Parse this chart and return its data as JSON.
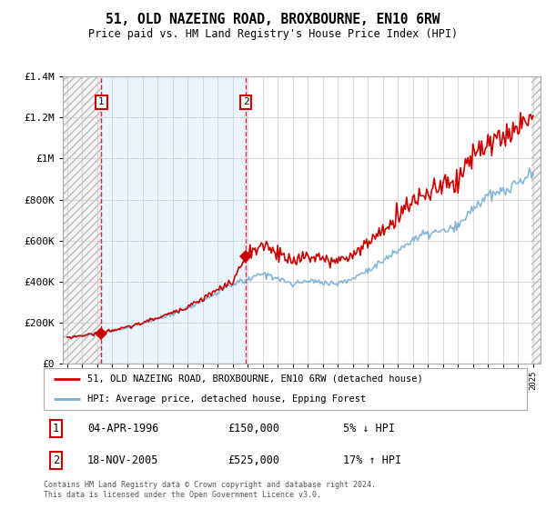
{
  "title": "51, OLD NAZEING ROAD, BROXBOURNE, EN10 6RW",
  "subtitle": "Price paid vs. HM Land Registry's House Price Index (HPI)",
  "legend_line1": "51, OLD NAZEING ROAD, BROXBOURNE, EN10 6RW (detached house)",
  "legend_line2": "HPI: Average price, detached house, Epping Forest",
  "footnote": "Contains HM Land Registry data © Crown copyright and database right 2024.\nThis data is licensed under the Open Government Licence v3.0.",
  "transaction1_label": "1",
  "transaction1_date": "04-APR-1996",
  "transaction1_price": 150000,
  "transaction1_note": "5% ↓ HPI",
  "transaction2_label": "2",
  "transaction2_date": "18-NOV-2005",
  "transaction2_price": 525000,
  "transaction2_note": "17% ↑ HPI",
  "price_color": "#cc0000",
  "hpi_color": "#7ab0d4",
  "hpi_fill_color": "#ddeeff",
  "ylim": [
    0,
    1400000
  ],
  "yticks": [
    0,
    200000,
    400000,
    600000,
    800000,
    1000000,
    1200000,
    1400000
  ],
  "ytick_labels": [
    "£0",
    "£200K",
    "£400K",
    "£600K",
    "£800K",
    "£1M",
    "£1.2M",
    "£1.4M"
  ],
  "t1_x": 1996.27,
  "t1_y": 150000,
  "t2_x": 2005.88,
  "t2_y": 525000,
  "xlim_left": 1993.7,
  "xlim_right": 2025.5,
  "hatch_right_start": 2024.92
}
